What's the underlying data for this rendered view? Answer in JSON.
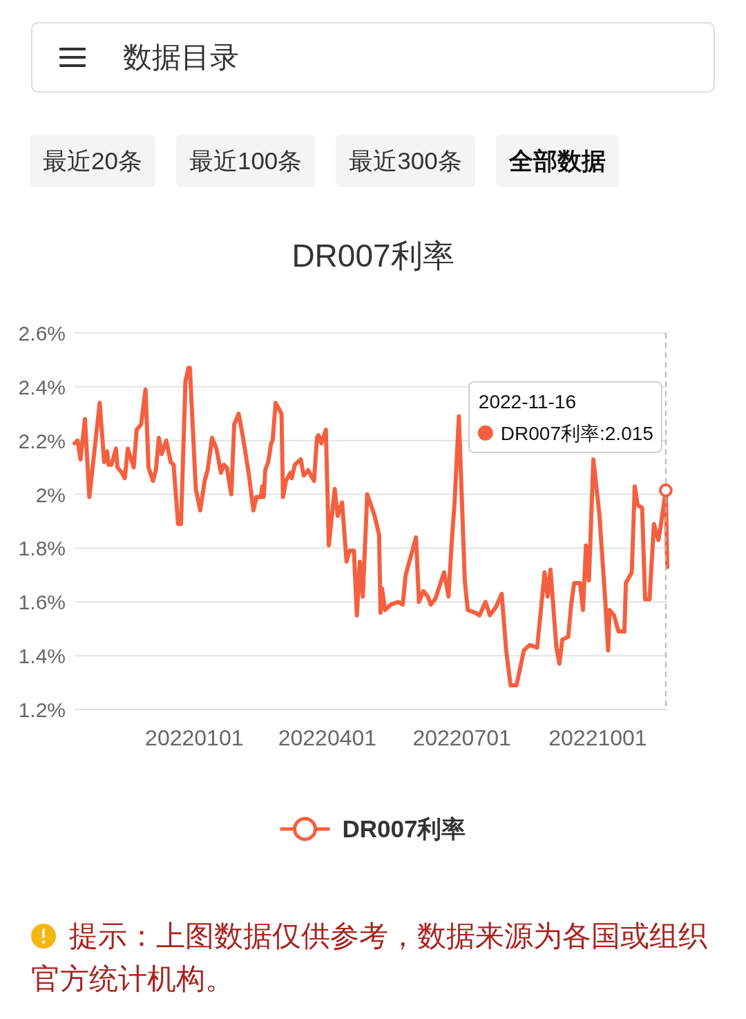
{
  "chart_data": {
    "type": "line",
    "title": "DR007利率",
    "x": [
      "2021-10-12",
      "2021-10-14",
      "2021-10-16",
      "2021-10-19",
      "2021-10-22",
      "2021-10-29",
      "2021-11-01",
      "2021-11-03",
      "2021-11-04",
      "2021-11-06",
      "2021-11-09",
      "2021-11-10",
      "2021-11-13",
      "2021-11-15",
      "2021-11-17",
      "2021-11-21",
      "2021-11-23",
      "2021-11-26",
      "2021-11-29",
      "2021-12-01",
      "2021-12-04",
      "2021-12-06",
      "2021-12-08",
      "2021-12-10",
      "2021-12-13",
      "2021-12-16",
      "2021-12-18",
      "2021-12-21",
      "2021-12-23",
      "2021-12-26",
      "2021-12-28",
      "2021-12-29",
      "2022-01-02",
      "2022-01-05",
      "2022-01-08",
      "2022-01-10",
      "2022-01-13",
      "2022-01-16",
      "2022-01-19",
      "2022-01-21",
      "2022-01-23",
      "2022-01-26",
      "2022-01-28",
      "2022-01-31",
      "2022-02-03",
      "2022-02-07",
      "2022-02-10",
      "2022-02-12",
      "2022-02-15",
      "2022-02-16",
      "2022-02-17",
      "2022-02-18",
      "2022-02-20",
      "2022-02-22",
      "2022-02-23",
      "2022-02-25",
      "2022-03-01",
      "2022-03-02",
      "2022-03-04",
      "2022-03-07",
      "2022-03-08",
      "2022-03-10",
      "2022-03-14",
      "2022-03-16",
      "2022-03-19",
      "2022-03-23",
      "2022-03-25",
      "2022-03-26",
      "2022-03-28",
      "2022-03-31",
      "2022-04-02",
      "2022-04-06",
      "2022-04-08",
      "2022-04-11",
      "2022-04-14",
      "2022-04-16",
      "2022-04-19",
      "2022-04-21",
      "2022-04-23",
      "2022-04-25",
      "2022-04-28",
      "2022-05-03",
      "2022-05-06",
      "2022-05-07",
      "2022-05-08",
      "2022-05-10",
      "2022-05-14",
      "2022-05-19",
      "2022-05-22",
      "2022-05-24",
      "2022-05-27",
      "2022-05-31",
      "2022-06-02",
      "2022-06-05",
      "2022-06-08",
      "2022-06-10",
      "2022-06-13",
      "2022-06-16",
      "2022-06-19",
      "2022-06-22",
      "2022-06-24",
      "2022-06-26",
      "2022-06-29",
      "2022-07-03",
      "2022-07-05",
      "2022-07-10",
      "2022-07-13",
      "2022-07-17",
      "2022-07-20",
      "2022-07-24",
      "2022-07-28",
      "2022-07-31",
      "2022-08-03",
      "2022-08-07",
      "2022-08-12",
      "2022-08-16",
      "2022-08-21",
      "2022-08-26",
      "2022-08-28",
      "2022-08-30",
      "2022-09-03",
      "2022-09-05",
      "2022-09-07",
      "2022-09-11",
      "2022-09-13",
      "2022-09-15",
      "2022-09-19",
      "2022-09-21",
      "2022-09-23",
      "2022-09-25",
      "2022-09-28",
      "2022-10-02",
      "2022-10-06",
      "2022-10-08",
      "2022-10-09",
      "2022-10-12",
      "2022-10-15",
      "2022-10-19",
      "2022-10-20",
      "2022-10-24",
      "2022-10-26",
      "2022-10-28",
      "2022-10-31",
      "2022-11-02",
      "2022-11-05",
      "2022-11-08",
      "2022-11-11",
      "2022-11-12",
      "2022-11-16",
      "2022-11-17"
    ],
    "series": [
      {
        "name": "DR007利率",
        "color": "#f4603f",
        "values": [
          2.19,
          2.2,
          2.13,
          2.28,
          1.99,
          2.34,
          2.12,
          2.16,
          2.11,
          2.11,
          2.17,
          2.1,
          2.08,
          2.06,
          2.17,
          2.1,
          2.24,
          2.26,
          2.39,
          2.1,
          2.05,
          2.09,
          2.21,
          2.15,
          2.2,
          2.12,
          2.11,
          1.89,
          1.89,
          2.42,
          2.47,
          2.47,
          2.02,
          1.94,
          2.05,
          2.09,
          2.21,
          2.17,
          2.08,
          2.11,
          2.1,
          2.0,
          2.26,
          2.3,
          2.21,
          2.07,
          1.94,
          1.99,
          1.99,
          2.03,
          1.99,
          2.09,
          2.12,
          2.19,
          2.2,
          2.34,
          2.3,
          1.99,
          2.05,
          2.08,
          2.06,
          2.11,
          2.13,
          2.07,
          2.09,
          2.05,
          2.21,
          2.22,
          2.19,
          2.24,
          1.81,
          2.02,
          1.92,
          1.97,
          1.75,
          1.79,
          1.79,
          1.55,
          1.75,
          1.62,
          2.0,
          1.92,
          1.85,
          1.56,
          1.65,
          1.57,
          1.59,
          1.6,
          1.59,
          1.7,
          1.76,
          1.84,
          1.6,
          1.64,
          1.62,
          1.59,
          1.61,
          1.66,
          1.71,
          1.62,
          1.81,
          1.96,
          2.29,
          1.68,
          1.57,
          1.56,
          1.55,
          1.6,
          1.55,
          1.58,
          1.63,
          1.42,
          1.29,
          1.29,
          1.42,
          1.44,
          1.43,
          1.71,
          1.62,
          1.72,
          1.43,
          1.37,
          1.46,
          1.47,
          1.59,
          1.67,
          1.67,
          1.57,
          1.81,
          1.68,
          2.13,
          1.93,
          1.61,
          1.42,
          1.57,
          1.55,
          1.49,
          1.49,
          1.67,
          1.71,
          2.03,
          1.96,
          1.95,
          1.61,
          1.61,
          1.89,
          1.83,
          1.86,
          2.015,
          1.73
        ]
      }
    ],
    "xlim": [
      "2021-10-12",
      "2022-11-17"
    ],
    "ylim": [
      1.2,
      2.6
    ],
    "xticks": [
      {
        "value": "2022-01-01",
        "label": "20220101"
      },
      {
        "value": "2022-04-01",
        "label": "20220401"
      },
      {
        "value": "2022-07-01",
        "label": "20220701"
      },
      {
        "value": "2022-10-01",
        "label": "20221001"
      }
    ],
    "yticks": [
      {
        "value": 1.2,
        "label": "1.2%"
      },
      {
        "value": 1.4,
        "label": "1.4%"
      },
      {
        "value": 1.6,
        "label": "1.6%"
      },
      {
        "value": 1.8,
        "label": "1.8%"
      },
      {
        "value": 2.0,
        "label": "2%"
      },
      {
        "value": 2.2,
        "label": "2.2%"
      },
      {
        "value": 2.4,
        "label": "2.4%"
      },
      {
        "value": 2.6,
        "label": "2.6%"
      }
    ],
    "grid": "y",
    "legend": "bottom",
    "annotations": [
      "数据目录",
      "最近20条",
      "最近100条",
      "最近300条",
      "全部数据",
      "2022-11-16",
      {
        "text": "DR007利率:2.015",
        "x": "2022-11-16",
        "y": 2.015
      },
      "提示：上图数据仅供参考，数据来源为各国或组织官方统计机构。"
    ]
  }
}
